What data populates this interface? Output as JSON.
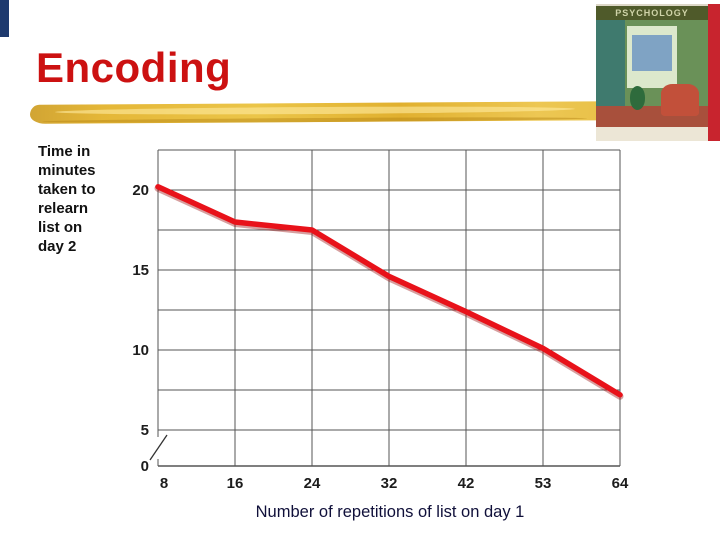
{
  "slide": {
    "title": "Encoding",
    "y_axis_label": "Time in\nminutes\ntaken to\nrelearn\nlist on\nday 2"
  },
  "book": {
    "header": "PSYCHOLOGY"
  },
  "chart_data": {
    "type": "line",
    "title": "",
    "xlabel": "Number of repetitions of list on day 1",
    "ylabel": "Time in minutes taken to relearn list on day 2",
    "x": [
      8,
      16,
      24,
      32,
      42,
      53,
      64
    ],
    "values": [
      20.2,
      18,
      17.5,
      14.6,
      12.4,
      10.1,
      7.2
    ],
    "ylim": [
      0,
      22.5
    ],
    "gridline_step": 2.5,
    "y_ticks_labeled": [
      20,
      15,
      10,
      5,
      0
    ],
    "axis_break_between_0_and_5": true,
    "grid": "on",
    "legend": "none"
  },
  "colors": {
    "title": "#cc1111",
    "accent_gold": "#e2ae27",
    "line": "#e8121a",
    "line_shadow": "#9b0f0f",
    "grid": "#555555",
    "tick_text": "#1c1c1c"
  }
}
